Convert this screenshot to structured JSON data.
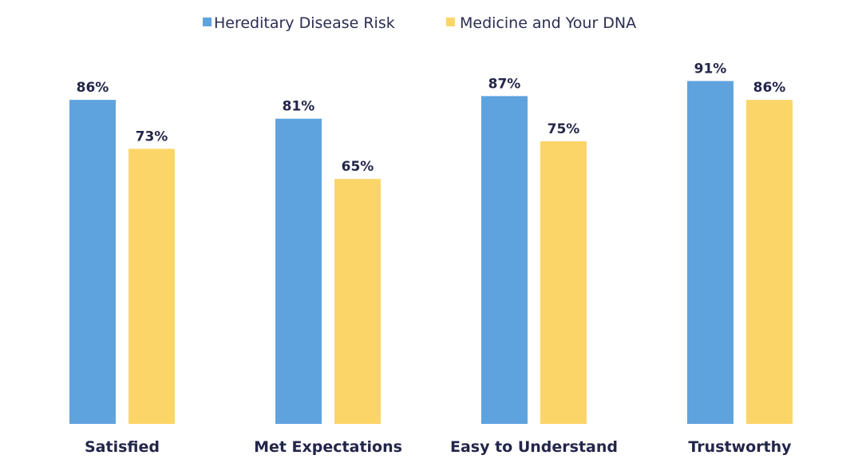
{
  "chart_data": {
    "type": "bar",
    "categories": [
      "Satisfied",
      "Met Expectations",
      "Easy to Understand",
      "Trustworthy"
    ],
    "series": [
      {
        "name": "Hereditary Disease Risk",
        "color": "#5fa3de",
        "values": [
          86,
          81,
          87,
          91
        ],
        "labels": [
          "86%",
          "81%",
          "87%",
          "91%"
        ]
      },
      {
        "name": "Medicine and Your DNA",
        "color": "#fcd568",
        "values": [
          73,
          65,
          75,
          86
        ],
        "labels": [
          "73%",
          "65%",
          "75%",
          "86%"
        ]
      }
    ],
    "ylim": [
      0,
      100
    ],
    "grid": false,
    "legend": "top-center"
  }
}
